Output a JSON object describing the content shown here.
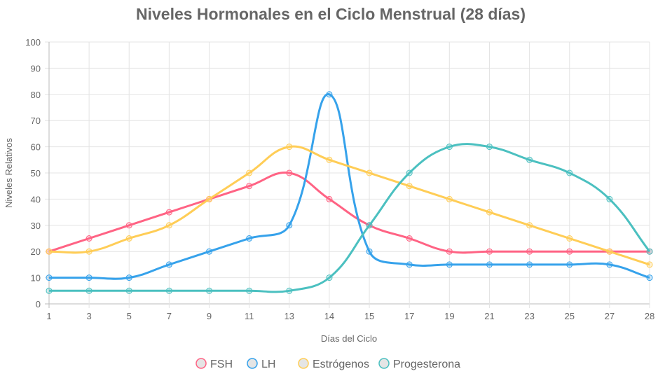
{
  "chart_data": {
    "type": "line",
    "title": "Niveles Hormonales en el Ciclo Menstrual (28 días)",
    "xlabel": "Días del Ciclo",
    "ylabel": "Niveles Relativos",
    "categories": [
      "1",
      "3",
      "5",
      "7",
      "9",
      "11",
      "13",
      "14",
      "15",
      "17",
      "19",
      "21",
      "23",
      "25",
      "27",
      "28"
    ],
    "ylim": [
      0,
      100
    ],
    "yticks": [
      "0",
      "10",
      "20",
      "30",
      "40",
      "50",
      "60",
      "70",
      "80",
      "90",
      "100"
    ],
    "grid": true,
    "legend_position": "bottom",
    "series": [
      {
        "name": "FSH",
        "color": "#ff6384",
        "values": [
          20,
          25,
          30,
          35,
          40,
          45,
          50,
          40,
          30,
          25,
          20,
          20,
          20,
          20,
          20,
          20
        ]
      },
      {
        "name": "LH",
        "color": "#36a2eb",
        "values": [
          10,
          10,
          10,
          15,
          20,
          25,
          30,
          80,
          20,
          15,
          15,
          15,
          15,
          15,
          15,
          10
        ]
      },
      {
        "name": "Estrógenos",
        "color": "#ffcd56",
        "values": [
          20,
          20,
          25,
          30,
          40,
          50,
          60,
          55,
          50,
          45,
          40,
          35,
          30,
          25,
          20,
          15
        ]
      },
      {
        "name": "Progesterona",
        "color": "#4bc0c0",
        "values": [
          5,
          5,
          5,
          5,
          5,
          5,
          5,
          10,
          30,
          50,
          60,
          60,
          55,
          50,
          40,
          20
        ]
      }
    ]
  }
}
